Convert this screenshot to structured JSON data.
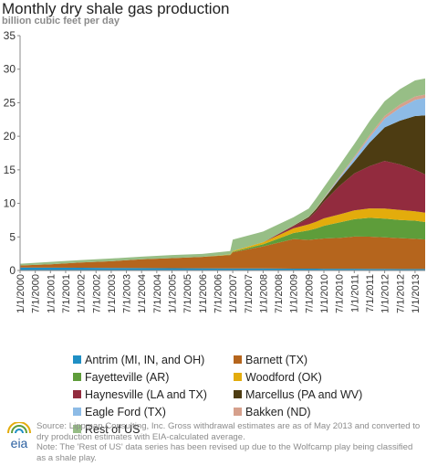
{
  "header": {
    "title": "Monthly dry shale gas production",
    "subtitle": "billion cubic feet per day"
  },
  "chart_data": {
    "type": "area",
    "stacked": true,
    "title": "Monthly dry shale gas production",
    "subtitle": "billion cubic feet per day",
    "xlabel": "",
    "ylabel": "",
    "ylim": [
      0,
      35
    ],
    "yticks": [
      "0",
      "5",
      "10",
      "15",
      "20",
      "25",
      "30",
      "35"
    ],
    "grid": false,
    "legend_position": "bottom",
    "xticklabels": [
      "1/1/2000",
      "7/1/2000",
      "1/1/2001",
      "7/1/2001",
      "1/1/2002",
      "7/1/2002",
      "1/1/2003",
      "7/1/2003",
      "1/1/2004",
      "7/1/2004",
      "1/1/2005",
      "7/1/2005",
      "1/1/2006",
      "7/1/2006",
      "1/1/2007",
      "7/1/2007",
      "1/1/2008",
      "7/1/2008",
      "1/1/2009",
      "7/1/2009",
      "1/1/2010",
      "7/1/2010",
      "1/1/2011",
      "7/1/2011",
      "1/1/2012",
      "7/1/2012",
      "1/1/2013"
    ],
    "x_range": [
      "2000-01",
      "2013-05"
    ],
    "x": [
      "2000-01",
      "2001-01",
      "2002-01",
      "2003-01",
      "2004-01",
      "2005-01",
      "2006-01",
      "2006-12",
      "2007-01",
      "2008-01",
      "2009-01",
      "2009-07",
      "2009-10",
      "2010-01",
      "2010-07",
      "2011-01",
      "2011-07",
      "2012-01",
      "2012-07",
      "2013-01",
      "2013-05"
    ],
    "series": [
      {
        "name": "Antrim (MI, IN, and OH)",
        "color": "#1f8fc4",
        "values": [
          0.45,
          0.42,
          0.4,
          0.38,
          0.36,
          0.34,
          0.32,
          0.3,
          0.3,
          0.3,
          0.28,
          0.27,
          0.27,
          0.26,
          0.25,
          0.25,
          0.24,
          0.23,
          0.22,
          0.22,
          0.22
        ]
      },
      {
        "name": "Barnett (TX)",
        "color": "#b5651d",
        "values": [
          0.3,
          0.5,
          0.8,
          1.0,
          1.3,
          1.5,
          1.7,
          2.0,
          2.4,
          3.3,
          4.4,
          4.3,
          4.4,
          4.5,
          4.6,
          4.8,
          4.8,
          4.7,
          4.6,
          4.5,
          4.4
        ]
      },
      {
        "name": "Fayetteville (AR)",
        "color": "#5e9d3a",
        "values": [
          0,
          0,
          0,
          0,
          0,
          0,
          0,
          0.05,
          0.1,
          0.3,
          0.9,
          1.4,
          1.6,
          1.9,
          2.3,
          2.6,
          2.8,
          2.8,
          2.7,
          2.7,
          2.6
        ]
      },
      {
        "name": "Woodford (OK)",
        "color": "#e3ac0c",
        "values": [
          0,
          0,
          0,
          0,
          0,
          0,
          0,
          0.05,
          0.1,
          0.3,
          0.7,
          0.9,
          1.0,
          1.1,
          1.2,
          1.3,
          1.4,
          1.5,
          1.5,
          1.4,
          1.4
        ]
      },
      {
        "name": "Haynesville (LA and TX)",
        "color": "#922b3e",
        "values": [
          0,
          0,
          0,
          0,
          0,
          0,
          0,
          0,
          0,
          0,
          0.3,
          0.9,
          1.6,
          2.5,
          4.2,
          5.5,
          6.3,
          7.1,
          6.8,
          6.2,
          5.7
        ]
      },
      {
        "name": "Marcellus (PA and WV)",
        "color": "#4d3c12",
        "values": [
          0,
          0,
          0,
          0,
          0,
          0,
          0,
          0,
          0,
          0,
          0.1,
          0.2,
          0.3,
          0.4,
          1.0,
          1.8,
          3.5,
          5.0,
          6.5,
          8.0,
          8.8
        ]
      },
      {
        "name": "Eagle Ford (TX)",
        "color": "#8dbbe6",
        "values": [
          0,
          0,
          0,
          0,
          0,
          0,
          0,
          0,
          0,
          0,
          0,
          0,
          0,
          0.05,
          0.2,
          0.5,
          0.8,
          1.3,
          1.9,
          2.4,
          2.6
        ]
      },
      {
        "name": "Bakken (ND)",
        "color": "#d6a08c",
        "values": [
          0,
          0,
          0,
          0,
          0,
          0,
          0,
          0,
          0,
          0,
          0.05,
          0.05,
          0.1,
          0.1,
          0.15,
          0.2,
          0.3,
          0.4,
          0.5,
          0.5,
          0.5
        ]
      },
      {
        "name": "Rest of US",
        "color": "#97be86",
        "values": [
          0.25,
          0.35,
          0.35,
          0.4,
          0.4,
          0.45,
          0.45,
          0.5,
          1.7,
          1.6,
          1.2,
          1.2,
          1.5,
          1.6,
          1.7,
          1.9,
          2.1,
          2.2,
          2.3,
          2.4,
          2.4
        ]
      }
    ]
  },
  "legend": [
    {
      "label": "Antrim (MI, IN, and OH)",
      "color": "#1f8fc4"
    },
    {
      "label": "Barnett (TX)",
      "color": "#b5651d"
    },
    {
      "label": "Fayetteville (AR)",
      "color": "#5e9d3a"
    },
    {
      "label": "Woodford (OK)",
      "color": "#e3ac0c"
    },
    {
      "label": "Haynesville (LA and TX)",
      "color": "#922b3e"
    },
    {
      "label": "Marcellus (PA and WV)",
      "color": "#4d3c12"
    },
    {
      "label": "Eagle Ford (TX)",
      "color": "#8dbbe6"
    },
    {
      "label": "Bakken (ND)",
      "color": "#d6a08c"
    },
    {
      "label": "Rest of US",
      "color": "#97be86"
    }
  ],
  "footer": {
    "logo_text": "eia",
    "logo_icon": "eia-logo-icon",
    "source": "Source: Lippman Consulting, Inc. Gross withdrawal estimates are as of May 2013 and converted to dry production estimates with EIA-calculated average.",
    "note": "Note: The 'Rest of US' data series has been revised up due to the Wolfcamp play being classified as a shale play."
  }
}
